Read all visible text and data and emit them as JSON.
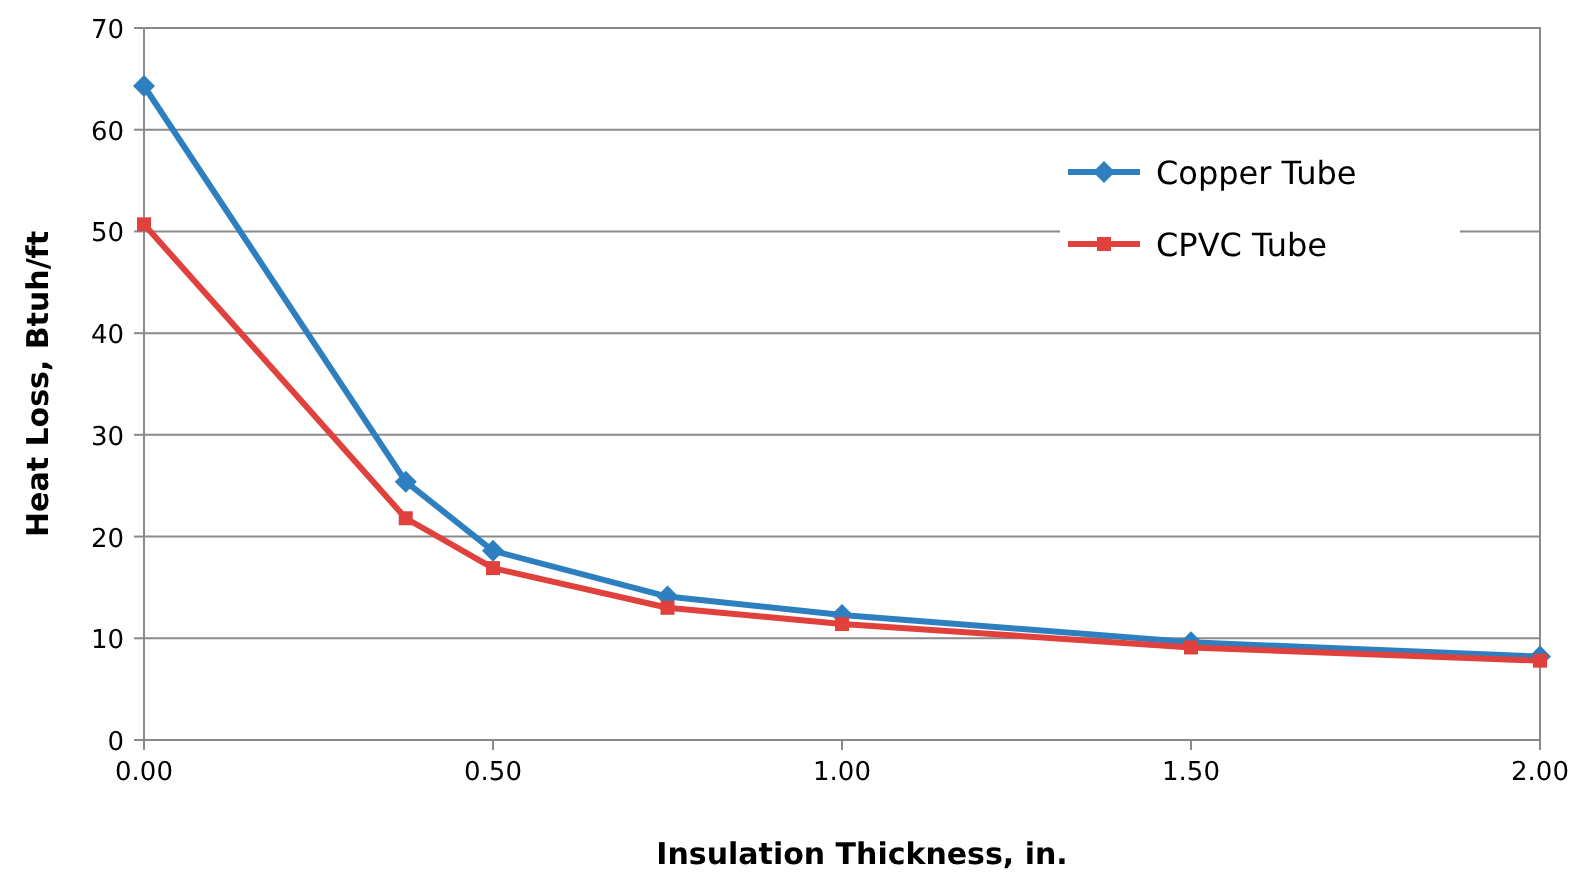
{
  "chart_data": {
    "type": "line",
    "xlabel": "Insulation Thickness, in.",
    "ylabel": "Heat Loss, Btuh/ft",
    "x": [
      0,
      0.375,
      0.5,
      0.75,
      1,
      1.5,
      2
    ],
    "series": [
      {
        "name": "Copper Tube",
        "color": "#2e7fc0",
        "marker": "diamond",
        "values": [
          64.3,
          25.4,
          18.6,
          14.1,
          12.3,
          9.6,
          8.2
        ]
      },
      {
        "name": "CPVC Tube",
        "color": "#e0413d",
        "marker": "square",
        "values": [
          50.7,
          21.8,
          16.9,
          13.0,
          11.4,
          9.1,
          7.8
        ]
      }
    ],
    "xlim": [
      0,
      2
    ],
    "xticks": [
      {
        "value": 0,
        "label": "0.00"
      },
      {
        "value": 0.5,
        "label": "0.50"
      },
      {
        "value": 1,
        "label": "1.00"
      },
      {
        "value": 1.5,
        "label": "1.50"
      },
      {
        "value": 2,
        "label": "2.00"
      }
    ],
    "ylim": [
      0,
      70
    ],
    "yticks": [
      0,
      10,
      20,
      30,
      40,
      50,
      60,
      70
    ],
    "grid": "y",
    "legend": "top right",
    "line_style": "solid"
  }
}
